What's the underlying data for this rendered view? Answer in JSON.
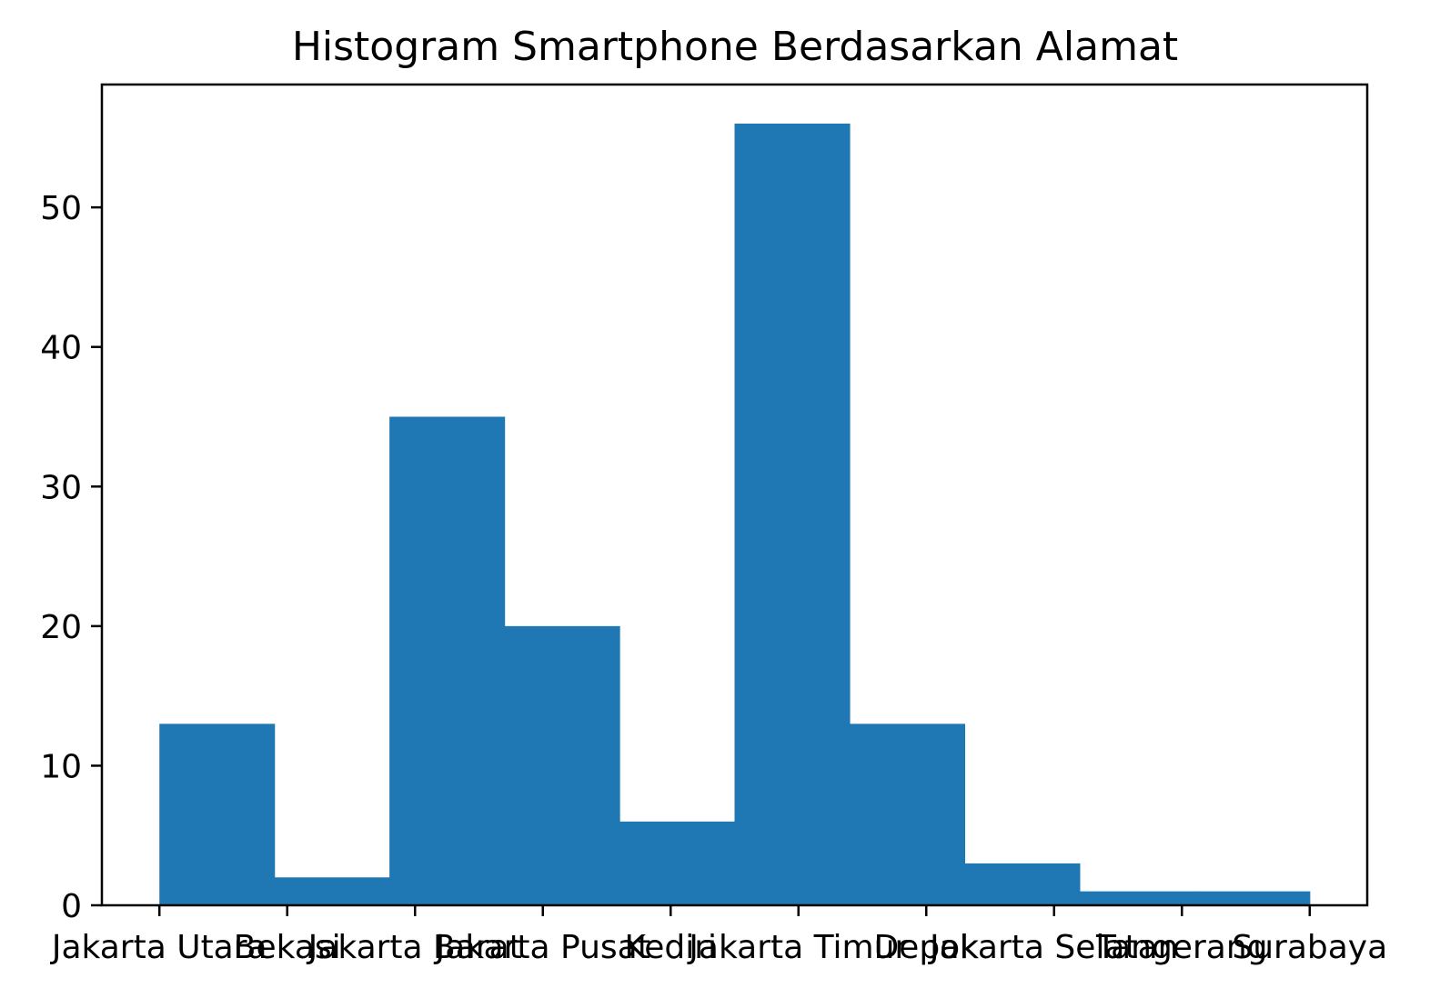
{
  "chart_data": {
    "type": "bar",
    "title": "Histogram Smartphone Berdasarkan Alamat",
    "xlabel": "",
    "ylabel": "",
    "bin_edges": [
      0,
      0.9,
      1.8,
      2.7,
      3.6,
      4.5,
      5.4,
      6.3,
      7.2,
      8.1,
      9.0
    ],
    "values": [
      13,
      2,
      35,
      20,
      6,
      56,
      13,
      3,
      1,
      1
    ],
    "x_ticks": [
      0,
      1,
      2,
      3,
      4,
      5,
      6,
      7,
      8,
      9
    ],
    "categories": [
      "Jakarta Utara",
      "Bekasi",
      "Jakarta Barat",
      "Jakarta Pusat",
      "Kediri",
      "Jakarta Timur",
      "Depok",
      "Jakarta Selatan",
      "Tangerang",
      "Surabaya"
    ],
    "y_ticks": [
      0,
      10,
      20,
      30,
      40,
      50
    ],
    "xlim": [
      -0.45,
      9.45
    ],
    "ylim": [
      0,
      58.8
    ],
    "grid": false,
    "legend": "none",
    "bar_color": "#1f77b4"
  }
}
